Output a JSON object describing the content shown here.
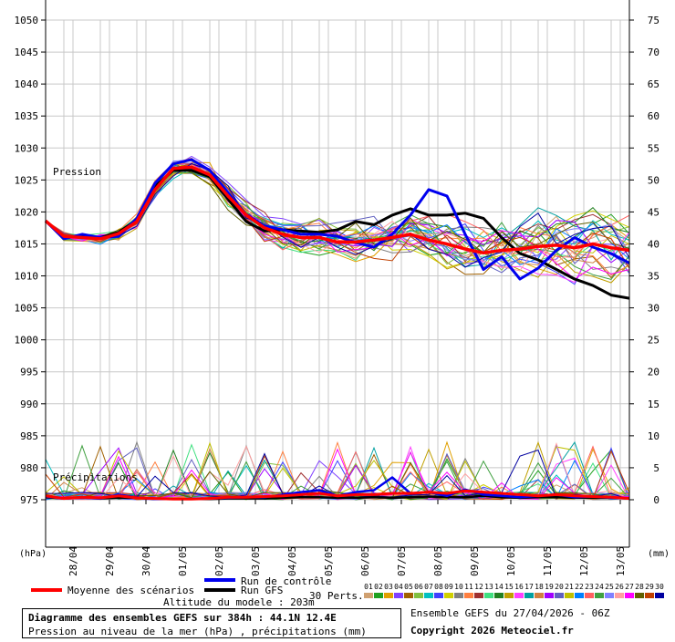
{
  "chart_data": {
    "type": "line",
    "pressure_label": "Pression",
    "precip_label": "Précipitations",
    "left_unit": "(hPa)",
    "right_unit": "(mm)",
    "left_ticks": [
      1050,
      1045,
      1040,
      1035,
      1030,
      1025,
      1020,
      1015,
      1010,
      1005,
      1000,
      995,
      990,
      985,
      980,
      975
    ],
    "right_ticks": [
      75,
      70,
      65,
      60,
      55,
      50,
      45,
      40,
      35,
      30,
      25,
      20,
      15,
      10,
      5,
      0
    ],
    "ylim_pressure": [
      975,
      1050
    ],
    "ylim_precip": [
      0,
      75
    ],
    "x_range_days": [
      27.25,
      43.25
    ],
    "x_ticks": [
      "28/04",
      "29/04",
      "30/04",
      "01/05",
      "02/05",
      "03/05",
      "04/05",
      "05/05",
      "06/05",
      "07/05",
      "08/05",
      "09/05",
      "10/05",
      "11/05",
      "12/05",
      "13/05"
    ],
    "grid": true,
    "series": [
      {
        "name": "Moyenne des scénarios",
        "color": "#ff0000",
        "kind": "mean",
        "pressure": [
          [
            0,
            1018.6
          ],
          [
            0.5,
            1016.2
          ],
          [
            1,
            1016.0
          ],
          [
            1.5,
            1015.8
          ],
          [
            2,
            1016.6
          ],
          [
            2.5,
            1018.5
          ],
          [
            3,
            1023.5
          ],
          [
            3.5,
            1026.8
          ],
          [
            4,
            1027.0
          ],
          [
            4.5,
            1025.8
          ],
          [
            5,
            1022.5
          ],
          [
            5.5,
            1019.5
          ],
          [
            6,
            1017.5
          ],
          [
            6.5,
            1016.5
          ],
          [
            7,
            1016.0
          ],
          [
            7.5,
            1016.0
          ],
          [
            8,
            1015.3
          ],
          [
            8.5,
            1015.3
          ],
          [
            9,
            1015.6
          ],
          [
            9.5,
            1016.0
          ],
          [
            10,
            1016.5
          ],
          [
            10.5,
            1015.6
          ],
          [
            11,
            1015.0
          ],
          [
            11.5,
            1014.2
          ],
          [
            12,
            1013.6
          ],
          [
            12.5,
            1014.0
          ],
          [
            13,
            1014.2
          ],
          [
            13.5,
            1014.6
          ],
          [
            14,
            1014.8
          ],
          [
            14.5,
            1014.4
          ],
          [
            15,
            1015.0
          ],
          [
            15.5,
            1014.4
          ],
          [
            16,
            1014.0
          ]
        ],
        "precip": [
          [
            0,
            0.6
          ],
          [
            0.5,
            0.2
          ],
          [
            1,
            0.4
          ],
          [
            1.5,
            0.3
          ],
          [
            2,
            0.6
          ],
          [
            2.5,
            0.3
          ],
          [
            3,
            0.2
          ],
          [
            3.5,
            0.1
          ],
          [
            4,
            0.1
          ],
          [
            4.5,
            0.2
          ],
          [
            5,
            0.4
          ],
          [
            5.5,
            0.4
          ],
          [
            6,
            0.5
          ],
          [
            6.5,
            0.6
          ],
          [
            7,
            0.8
          ],
          [
            7.5,
            1.0
          ],
          [
            8,
            0.6
          ],
          [
            8.5,
            0.8
          ],
          [
            9,
            0.8
          ],
          [
            9.5,
            1.0
          ],
          [
            10,
            1.0
          ],
          [
            10.5,
            1.2
          ],
          [
            11,
            1.0
          ],
          [
            11.5,
            1.4
          ],
          [
            12,
            1.2
          ],
          [
            12.5,
            1.0
          ],
          [
            13,
            0.8
          ],
          [
            13.5,
            0.6
          ],
          [
            14,
            0.8
          ],
          [
            14.5,
            0.6
          ],
          [
            15,
            0.5
          ],
          [
            15.5,
            0.4
          ],
          [
            16,
            0.2
          ]
        ]
      },
      {
        "name": "Run de contrôle",
        "color": "#0000ee",
        "kind": "control",
        "pressure": [
          [
            0,
            1018.6
          ],
          [
            0.5,
            1015.8
          ],
          [
            1,
            1016.5
          ],
          [
            1.5,
            1016.0
          ],
          [
            2,
            1016.2
          ],
          [
            2.5,
            1019.0
          ],
          [
            3,
            1024.5
          ],
          [
            3.5,
            1027.5
          ],
          [
            4,
            1028.2
          ],
          [
            4.5,
            1026.5
          ],
          [
            5,
            1023.0
          ],
          [
            5.5,
            1019.6
          ],
          [
            6,
            1017.8
          ],
          [
            6.5,
            1017.2
          ],
          [
            7,
            1016.5
          ],
          [
            7.5,
            1016.5
          ],
          [
            8,
            1016.2
          ],
          [
            8.5,
            1015.2
          ],
          [
            9,
            1014.5
          ],
          [
            9.5,
            1016.5
          ],
          [
            10,
            1019.5
          ],
          [
            10.5,
            1023.5
          ],
          [
            11,
            1022.5
          ],
          [
            11.5,
            1016.5
          ],
          [
            12,
            1011.0
          ],
          [
            12.5,
            1013.0
          ],
          [
            13,
            1009.5
          ],
          [
            13.5,
            1011.2
          ],
          [
            14,
            1014.0
          ],
          [
            14.5,
            1016.0
          ],
          [
            15,
            1014.5
          ],
          [
            15.5,
            1013.5
          ],
          [
            16,
            1012.0
          ]
        ],
        "precip": [
          [
            0,
            0.5
          ],
          [
            0.5,
            0.2
          ],
          [
            1,
            0.3
          ],
          [
            1.5,
            0.2
          ],
          [
            2,
            0.8
          ],
          [
            2.5,
            0.4
          ],
          [
            3,
            0.1
          ],
          [
            3.5,
            0.1
          ],
          [
            4,
            0.1
          ],
          [
            4.5,
            0.2
          ],
          [
            5,
            0.3
          ],
          [
            5.5,
            0.4
          ],
          [
            6,
            0.4
          ],
          [
            6.5,
            0.8
          ],
          [
            7,
            1.2
          ],
          [
            7.5,
            1.5
          ],
          [
            8,
            0.6
          ],
          [
            8.5,
            1.2
          ],
          [
            9,
            1.5
          ],
          [
            9.5,
            3.5
          ],
          [
            10,
            1.0
          ],
          [
            10.5,
            1.2
          ],
          [
            11,
            0.6
          ],
          [
            11.5,
            1.6
          ],
          [
            12,
            0.8
          ],
          [
            12.5,
            0.6
          ],
          [
            13,
            0.4
          ],
          [
            13.5,
            0.6
          ],
          [
            14,
            0.8
          ],
          [
            14.5,
            0.4
          ],
          [
            15,
            0.5
          ],
          [
            15.5,
            0.3
          ],
          [
            16,
            0.2
          ]
        ]
      },
      {
        "name": "Run GFS",
        "color": "#000000",
        "kind": "gfs",
        "pressure": [
          [
            0,
            1018.6
          ],
          [
            0.5,
            1016.0
          ],
          [
            1,
            1016.2
          ],
          [
            1.5,
            1016.0
          ],
          [
            2,
            1016.8
          ],
          [
            2.5,
            1018.8
          ],
          [
            3,
            1024.0
          ],
          [
            3.5,
            1026.5
          ],
          [
            4,
            1026.5
          ],
          [
            4.5,
            1025.5
          ],
          [
            5,
            1022.0
          ],
          [
            5.5,
            1018.5
          ],
          [
            6,
            1017.0
          ],
          [
            6.5,
            1017.2
          ],
          [
            7,
            1017.0
          ],
          [
            7.5,
            1016.8
          ],
          [
            8,
            1017.2
          ],
          [
            8.5,
            1018.5
          ],
          [
            9,
            1018.0
          ],
          [
            9.5,
            1019.5
          ],
          [
            10,
            1020.5
          ],
          [
            10.5,
            1019.5
          ],
          [
            11,
            1019.5
          ],
          [
            11.5,
            1019.8
          ],
          [
            12,
            1019.0
          ],
          [
            12.5,
            1016.0
          ],
          [
            13,
            1013.5
          ],
          [
            13.5,
            1012.5
          ],
          [
            14,
            1011.0
          ],
          [
            14.5,
            1009.5
          ],
          [
            15,
            1008.5
          ],
          [
            15.5,
            1007.0
          ],
          [
            16,
            1006.5
          ]
        ],
        "precip": [
          [
            0,
            0.4
          ],
          [
            0.5,
            0.2
          ],
          [
            1,
            0.3
          ],
          [
            1.5,
            0.2
          ],
          [
            2,
            0.3
          ],
          [
            2.5,
            0.3
          ],
          [
            3,
            0.1
          ],
          [
            3.5,
            0.1
          ],
          [
            4,
            0.1
          ],
          [
            4.5,
            0.1
          ],
          [
            5,
            0.2
          ],
          [
            5.5,
            0.2
          ],
          [
            6,
            0.2
          ],
          [
            6.5,
            0.3
          ],
          [
            7,
            0.4
          ],
          [
            7.5,
            0.4
          ],
          [
            8,
            0.3
          ],
          [
            8.5,
            0.3
          ],
          [
            9,
            0.4
          ],
          [
            9.5,
            0.3
          ],
          [
            10,
            0.4
          ],
          [
            10.5,
            0.5
          ],
          [
            11,
            0.4
          ],
          [
            11.5,
            0.4
          ],
          [
            12,
            0.6
          ],
          [
            12.5,
            0.4
          ],
          [
            13,
            0.3
          ],
          [
            13.5,
            0.4
          ],
          [
            14,
            0.4
          ],
          [
            14.5,
            0.3
          ],
          [
            15,
            0.3
          ],
          [
            15.5,
            0.3
          ],
          [
            16,
            0.2
          ]
        ]
      }
    ],
    "perturbations": {
      "seed": 7,
      "count": 30,
      "colors": [
        "#d0a070",
        "#20a020",
        "#e0a000",
        "#8040ff",
        "#a06000",
        "#80c040",
        "#00c0c0",
        "#4040ff",
        "#d0d000",
        "#808080",
        "#ff8040",
        "#a03030",
        "#40e080",
        "#208020",
        "#c0a000",
        "#ff40ff",
        "#00a0a0",
        "#d08040",
        "#a000ff",
        "#6060c0",
        "#c0c000",
        "#0080ff",
        "#ff6060",
        "#40a040",
        "#8080ff",
        "#ffa0a0",
        "#ff00ff",
        "#606000",
        "#c04000",
        "#0000a0"
      ]
    }
  },
  "legend": {
    "mean_label": "Moyenne des scénarios",
    "control_label": "Run de contrôle",
    "gfs_label": "Run GFS",
    "perts_label": "30 Perts.",
    "pert_numbers": [
      "01",
      "02",
      "03",
      "04",
      "05",
      "06",
      "07",
      "08",
      "09",
      "10",
      "11",
      "12",
      "13",
      "14",
      "15",
      "16",
      "17",
      "18",
      "19",
      "20",
      "21",
      "22",
      "23",
      "24",
      "25",
      "26",
      "27",
      "28",
      "29",
      "30"
    ],
    "altitude": "Altitude du modele : 203m"
  },
  "footer": {
    "title": "Diagramme des ensembles GEFS sur 384h : 44.1N 12.4E",
    "subtitle": "Pression au niveau de la mer (hPa) , précipitations (mm)",
    "ensemble": "Ensemble GEFS du 27/04/2026 - 06Z",
    "copyright": "Copyright 2026 Meteociel.fr"
  }
}
